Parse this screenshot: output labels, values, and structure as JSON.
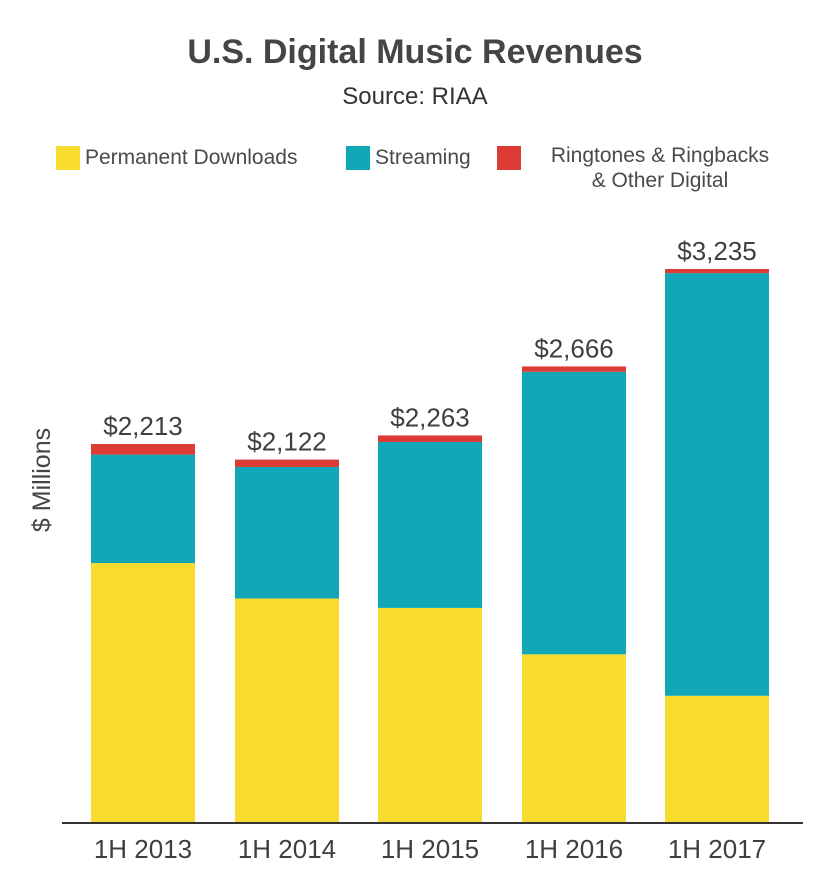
{
  "chart_data": {
    "type": "bar",
    "stacked": true,
    "title": "U.S. Digital Music Revenues",
    "subtitle": "Source: RIAA",
    "xlabel": "",
    "ylabel": "$ Millions",
    "ylim": [
      0,
      3300
    ],
    "grid": false,
    "legend_position": "top",
    "categories": [
      "1H 2013",
      "1H 2014",
      "1H 2015",
      "1H 2016",
      "1H 2017"
    ],
    "series": [
      {
        "name": "Permanent Downloads",
        "color": "#f7dc2e",
        "values": [
          1518,
          1311,
          1256,
          985,
          743
        ]
      },
      {
        "name": "Streaming",
        "color": "#11a7b6",
        "values": [
          633,
          768,
          969,
          1650,
          2468
        ]
      },
      {
        "name": "Ringtones & Ringbacks & Other Digital",
        "legend_lines": [
          "Ringtones & Ringbacks",
          "& Other Digital"
        ],
        "color": "#db3a35",
        "values": [
          62,
          43,
          38,
          31,
          24
        ]
      }
    ],
    "totals": [
      2213,
      2122,
      2263,
      2666,
      3235
    ],
    "total_labels": [
      "$2,213",
      "$2,122",
      "$2,263",
      "$2,666",
      "$3,235"
    ]
  }
}
